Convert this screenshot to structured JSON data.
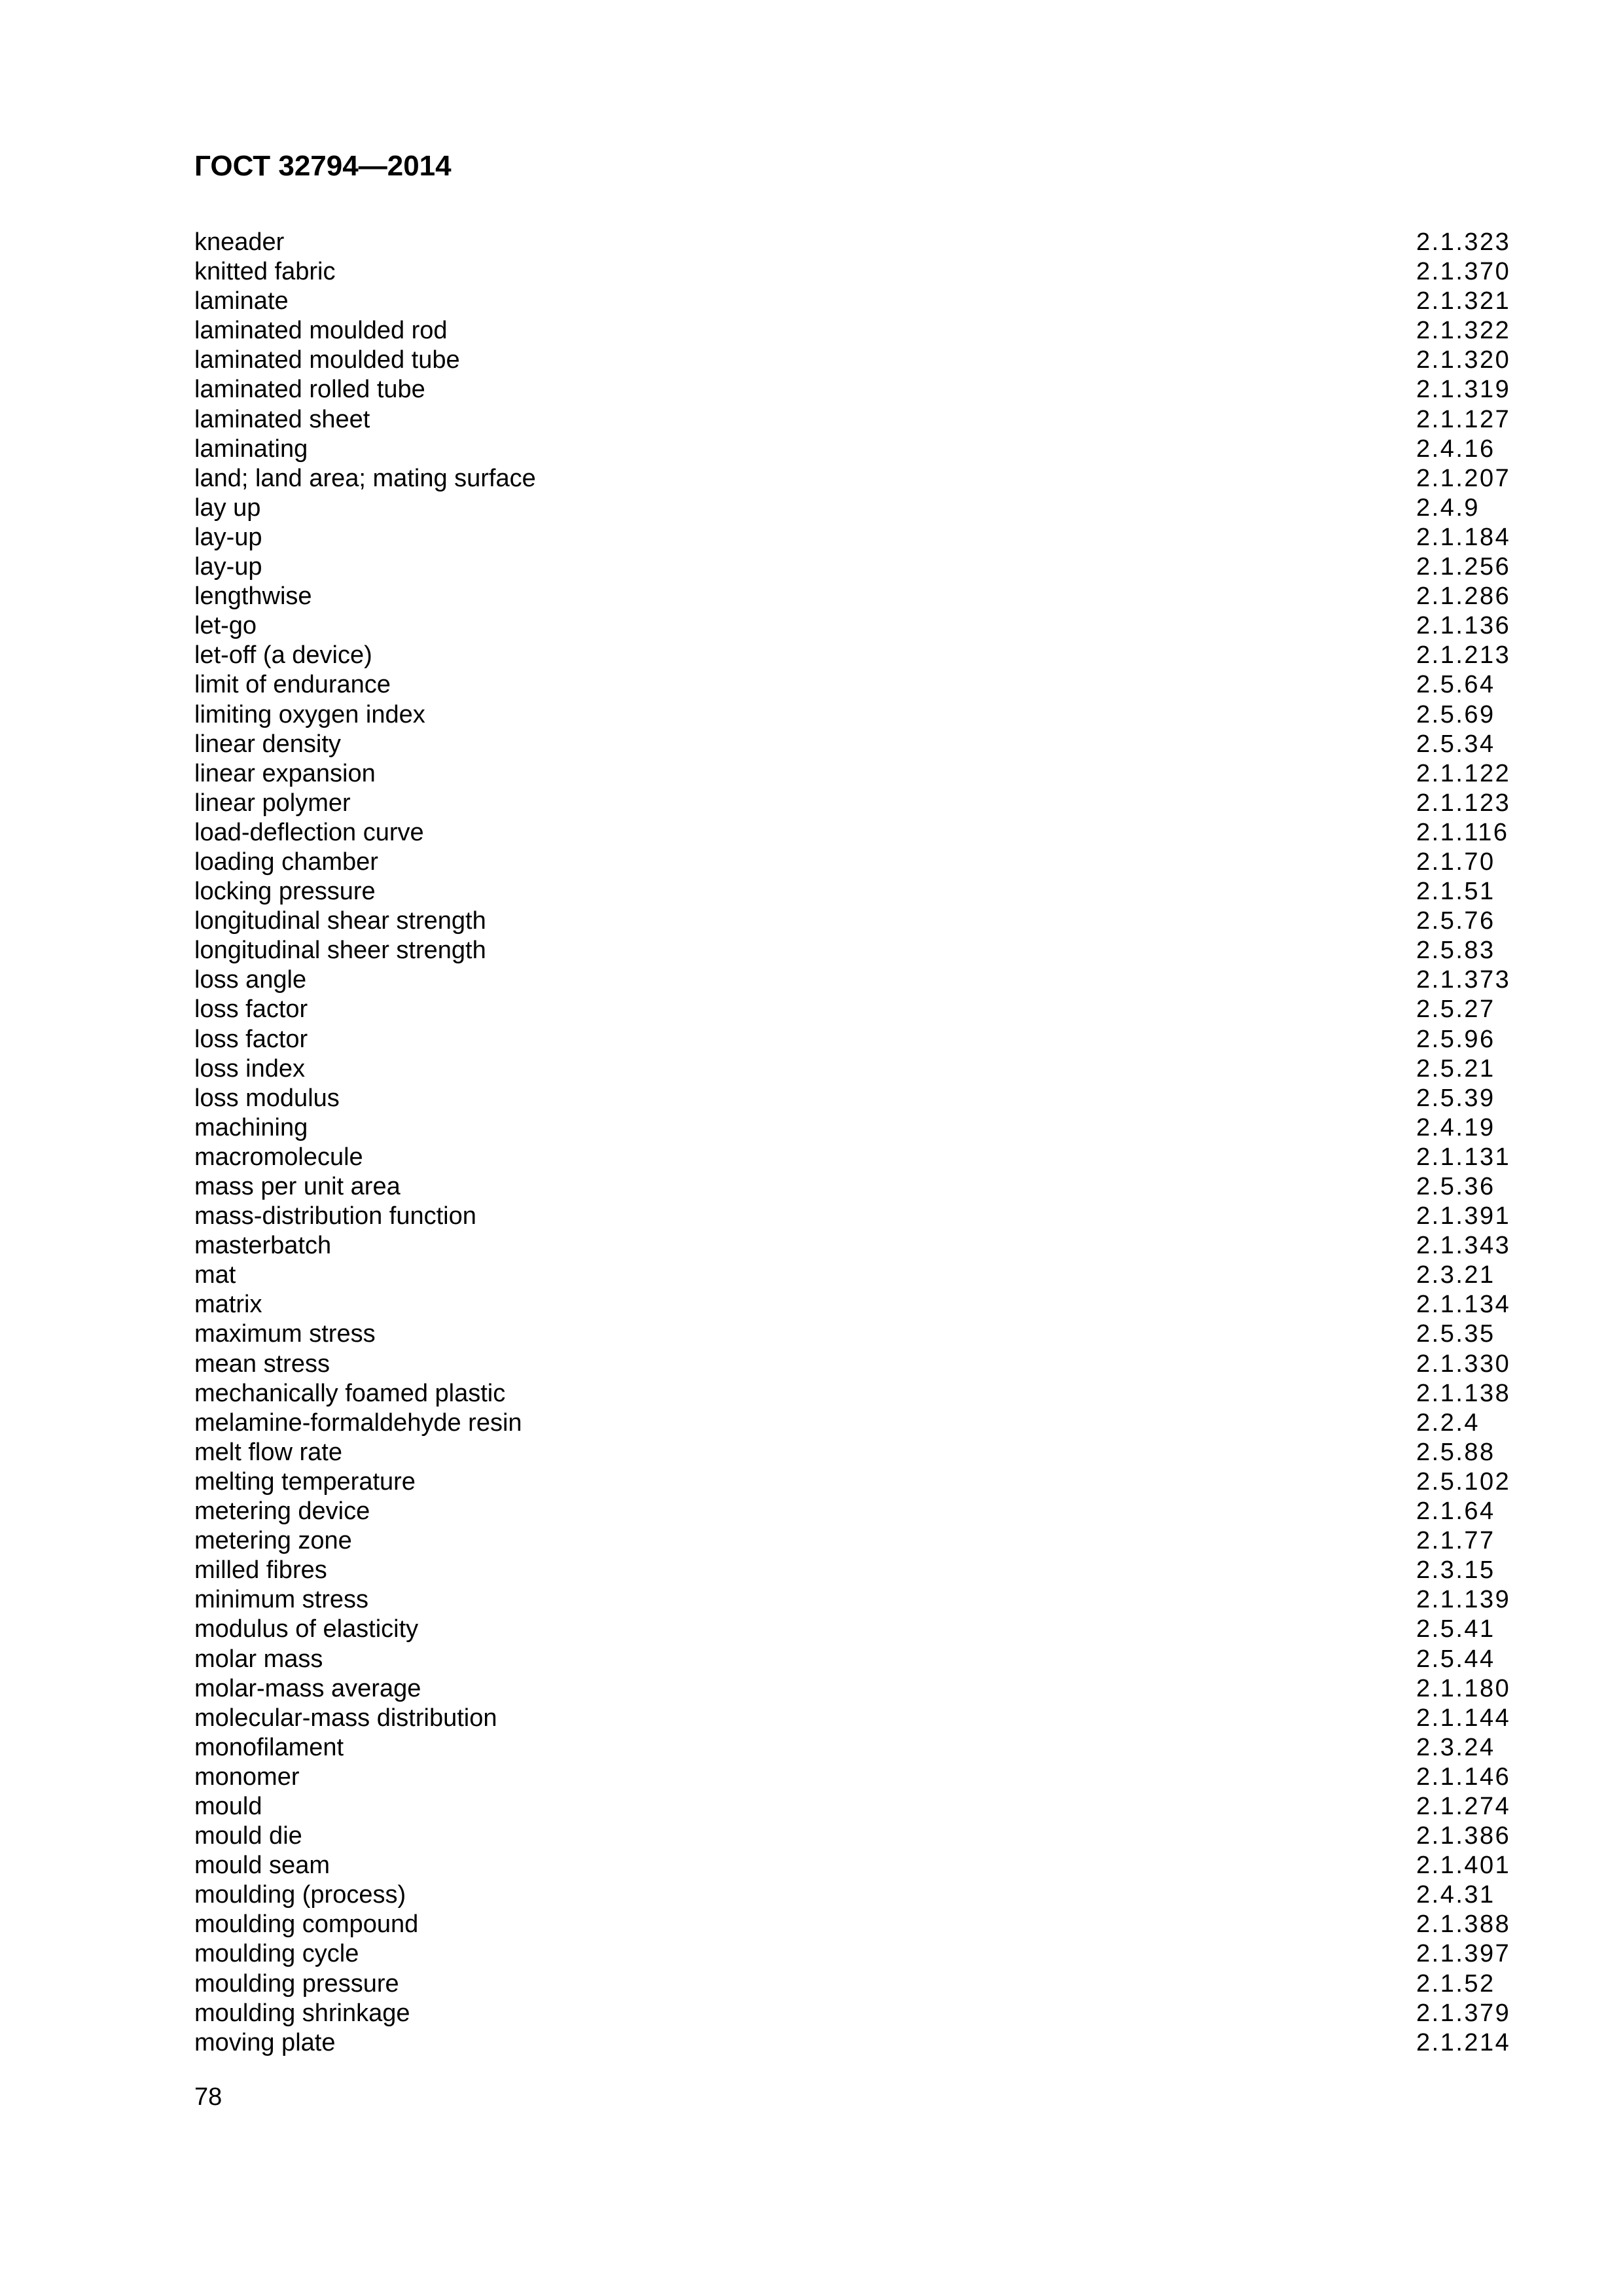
{
  "header": {
    "title": "ГОСТ 32794—2014"
  },
  "entries": [
    {
      "term": "kneader",
      "ref": "2.1.323"
    },
    {
      "term": "knitted fabric",
      "ref": "2.1.370"
    },
    {
      "term": "laminate",
      "ref": "2.1.321"
    },
    {
      "term": "laminated moulded rod",
      "ref": "2.1.322"
    },
    {
      "term": "laminated moulded tube",
      "ref": "2.1.320"
    },
    {
      "term": "laminated rolled tube",
      "ref": "2.1.319"
    },
    {
      "term": "laminated sheet",
      "ref": "2.1.127"
    },
    {
      "term": "laminating",
      "ref": "2.4.16"
    },
    {
      "term": "land; land area; mating surface",
      "ref": "2.1.207"
    },
    {
      "term": "lay up",
      "ref": "2.4.9"
    },
    {
      "term": "lay-up",
      "ref": "2.1.184"
    },
    {
      "term": "lay-up",
      "ref": "2.1.256"
    },
    {
      "term": "lengthwise",
      "ref": "2.1.286"
    },
    {
      "term": "let-go",
      "ref": "2.1.136"
    },
    {
      "term": "let-off (a device)",
      "ref": "2.1.213"
    },
    {
      "term": "limit of endurance",
      "ref": "2.5.64"
    },
    {
      "term": "limiting oxygen index",
      "ref": "2.5.69"
    },
    {
      "term": "linear density",
      "ref": "2.5.34"
    },
    {
      "term": "linear expansion",
      "ref": "2.1.122"
    },
    {
      "term": "linear polymer",
      "ref": "2.1.123"
    },
    {
      "term": "load-deflection curve",
      "ref": "2.1.116"
    },
    {
      "term": "loading chamber",
      "ref": "2.1.70"
    },
    {
      "term": "locking pressure",
      "ref": "2.1.51"
    },
    {
      "term": "longitudinal shear strength",
      "ref": "2.5.76"
    },
    {
      "term": "longitudinal sheer strength",
      "ref": "2.5.83"
    },
    {
      "term": "loss angle",
      "ref": "2.1.373"
    },
    {
      "term": "loss factor",
      "ref": "2.5.27"
    },
    {
      "term": "loss factor",
      "ref": "2.5.96"
    },
    {
      "term": "loss index",
      "ref": "2.5.21"
    },
    {
      "term": "loss modulus",
      "ref": "2.5.39"
    },
    {
      "term": "machining",
      "ref": "2.4.19"
    },
    {
      "term": "macromolecule",
      "ref": "2.1.131"
    },
    {
      "term": "mass per unit area",
      "ref": "2.5.36"
    },
    {
      "term": "mass-distribution function",
      "ref": "2.1.391"
    },
    {
      "term": "masterbatch",
      "ref": "2.1.343"
    },
    {
      "term": "mat",
      "ref": "2.3.21"
    },
    {
      "term": "matrix",
      "ref": "2.1.134"
    },
    {
      "term": "maximum stress",
      "ref": "2.5.35"
    },
    {
      "term": "mean stress",
      "ref": "2.1.330"
    },
    {
      "term": "mechanically foamed plastic",
      "ref": "2.1.138"
    },
    {
      "term": "melamine-formaldehyde resin",
      "ref": "2.2.4"
    },
    {
      "term": "melt flow rate",
      "ref": "2.5.88"
    },
    {
      "term": "melting temperature",
      "ref": "2.5.102"
    },
    {
      "term": "metering device",
      "ref": "2.1.64"
    },
    {
      "term": "metering zone",
      "ref": "2.1.77"
    },
    {
      "term": "milled fibres",
      "ref": "2.3.15"
    },
    {
      "term": "minimum stress",
      "ref": "2.1.139"
    },
    {
      "term": "modulus of elasticity",
      "ref": "2.5.41"
    },
    {
      "term": "molar mass",
      "ref": "2.5.44"
    },
    {
      "term": "molar-mass average",
      "ref": "2.1.180"
    },
    {
      "term": "molecular-mass distribution",
      "ref": "2.1.144"
    },
    {
      "term": "monofilament",
      "ref": "2.3.24"
    },
    {
      "term": "monomer",
      "ref": "2.1.146"
    },
    {
      "term": "mould",
      "ref": "2.1.274"
    },
    {
      "term": "mould die",
      "ref": "2.1.386"
    },
    {
      "term": "mould seam",
      "ref": "2.1.401"
    },
    {
      "term": "moulding (process)",
      "ref": "2.4.31"
    },
    {
      "term": "moulding compound",
      "ref": "2.1.388"
    },
    {
      "term": "moulding cycle",
      "ref": "2.1.397"
    },
    {
      "term": "moulding pressure",
      "ref": "2.1.52"
    },
    {
      "term": "moulding shrinkage",
      "ref": "2.1.379"
    },
    {
      "term": "moving plate",
      "ref": "2.1.214"
    }
  ],
  "footer": {
    "page_number": "78"
  }
}
